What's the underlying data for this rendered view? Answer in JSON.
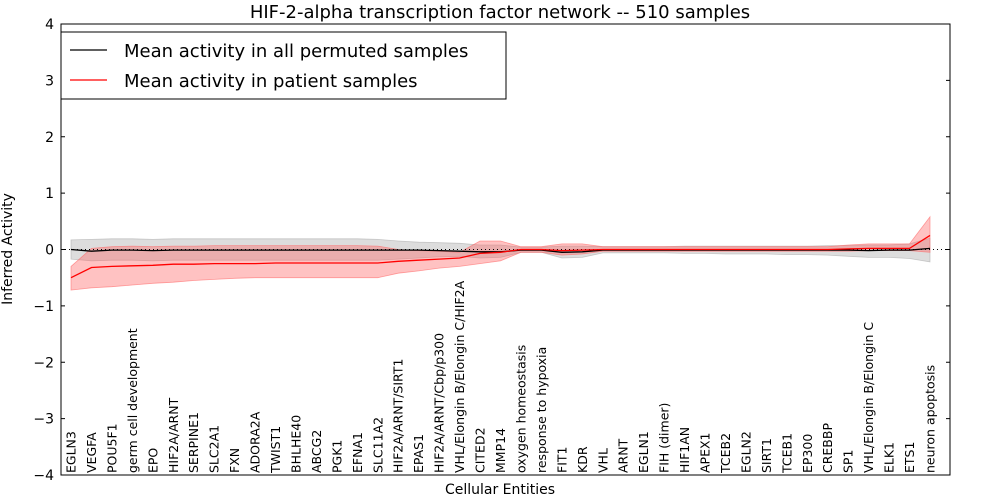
{
  "chart_data": {
    "type": "line",
    "title": "HIF-2-alpha transcription factor network -- 510 samples",
    "xlabel": "Cellular Entities",
    "ylabel": "Inferred Activity",
    "ylim": [
      -4,
      4
    ],
    "yticks": [
      -4,
      -3,
      -2,
      -1,
      0,
      1,
      2,
      3,
      4
    ],
    "ytick_labels": [
      "−4",
      "−3",
      "−2",
      "−1",
      "0",
      "1",
      "2",
      "3",
      "4"
    ],
    "legend_position": "top-left",
    "categories": [
      "EGLN3",
      "VEGFA",
      "POU5F1",
      "germ cell development",
      "EPO",
      "HIF2A/ARNT",
      "SERPINE1",
      "SLC2A1",
      "FXN",
      "ADORA2A",
      "TWIST1",
      "BHLHE40",
      "ABCG2",
      "PGK1",
      "EFNA1",
      "SLC11A2",
      "HIF2A/ARNT/SIRT1",
      "EPAS1",
      "HIF2A/ARNT/Cbp/p300",
      "VHL/Elongin B/Elongin C/HIF2A",
      "CITED2",
      "MMP14",
      "oxygen homeostasis",
      "response to hypoxia",
      "FIT1",
      "KDR",
      "VHL",
      "ARNT",
      "EGLN1",
      "FIH (dimer)",
      "HIF1AN",
      "APEX1",
      "TCEB2",
      "EGLN2",
      "SIRT1",
      "TCEB1",
      "EP300",
      "CREBBP",
      "SP1",
      "VHL/Elongin B/Elongin C",
      "ELK1",
      "ETS1",
      "neuron apoptosis"
    ],
    "series": [
      {
        "name": "Mean activity in all permuted samples",
        "color": "#000000",
        "band_color": "#aaaaaa",
        "values": [
          0.0,
          -0.03,
          -0.01,
          -0.01,
          -0.02,
          -0.01,
          -0.01,
          -0.01,
          -0.01,
          -0.01,
          -0.01,
          -0.01,
          -0.01,
          -0.01,
          -0.01,
          -0.01,
          -0.01,
          -0.01,
          -0.02,
          -0.03,
          -0.04,
          -0.04,
          -0.01,
          -0.01,
          -0.05,
          -0.04,
          -0.01,
          -0.01,
          -0.01,
          -0.01,
          -0.01,
          -0.01,
          -0.01,
          -0.01,
          -0.01,
          -0.01,
          -0.01,
          -0.01,
          -0.01,
          -0.02,
          -0.01,
          -0.01,
          0.02
        ],
        "lower": [
          -0.17,
          -0.2,
          -0.19,
          -0.19,
          -0.2,
          -0.19,
          -0.19,
          -0.19,
          -0.19,
          -0.19,
          -0.19,
          -0.19,
          -0.19,
          -0.19,
          -0.19,
          -0.19,
          -0.17,
          -0.15,
          -0.13,
          -0.12,
          -0.15,
          -0.14,
          -0.05,
          -0.05,
          -0.15,
          -0.14,
          -0.06,
          -0.06,
          -0.06,
          -0.06,
          -0.07,
          -0.07,
          -0.08,
          -0.08,
          -0.08,
          -0.09,
          -0.09,
          -0.1,
          -0.12,
          -0.14,
          -0.14,
          -0.16,
          -0.22
        ],
        "upper": [
          0.17,
          0.18,
          0.19,
          0.19,
          0.18,
          0.19,
          0.19,
          0.19,
          0.19,
          0.19,
          0.19,
          0.19,
          0.19,
          0.19,
          0.19,
          0.18,
          0.15,
          0.13,
          0.12,
          0.11,
          0.08,
          0.08,
          0.04,
          0.04,
          0.06,
          0.06,
          0.05,
          0.05,
          0.05,
          0.05,
          0.06,
          0.06,
          0.06,
          0.06,
          0.06,
          0.06,
          0.06,
          0.07,
          0.07,
          0.08,
          0.08,
          0.1,
          0.2
        ]
      },
      {
        "name": "Mean activity in patient samples",
        "color": "#ff0000",
        "band_color": "#ff6666",
        "values": [
          -0.5,
          -0.32,
          -0.3,
          -0.29,
          -0.28,
          -0.26,
          -0.26,
          -0.25,
          -0.25,
          -0.25,
          -0.24,
          -0.24,
          -0.24,
          -0.24,
          -0.24,
          -0.24,
          -0.21,
          -0.19,
          -0.17,
          -0.15,
          -0.07,
          -0.05,
          0.0,
          0.0,
          -0.02,
          -0.01,
          0.0,
          0.0,
          0.0,
          0.0,
          0.0,
          0.0,
          0.0,
          0.0,
          0.0,
          0.0,
          0.0,
          0.0,
          0.01,
          0.02,
          0.02,
          0.02,
          0.25
        ],
        "lower": [
          -0.72,
          -0.68,
          -0.66,
          -0.63,
          -0.6,
          -0.58,
          -0.55,
          -0.53,
          -0.51,
          -0.5,
          -0.5,
          -0.5,
          -0.5,
          -0.5,
          -0.5,
          -0.5,
          -0.42,
          -0.38,
          -0.33,
          -0.3,
          -0.25,
          -0.2,
          -0.05,
          -0.05,
          -0.1,
          -0.08,
          -0.03,
          -0.03,
          -0.03,
          -0.03,
          -0.03,
          -0.03,
          -0.03,
          -0.03,
          -0.03,
          -0.03,
          -0.03,
          -0.03,
          -0.03,
          -0.02,
          -0.02,
          -0.02,
          -0.05
        ],
        "upper": [
          -0.3,
          0.02,
          0.05,
          0.06,
          0.05,
          0.06,
          0.06,
          0.07,
          0.07,
          0.07,
          0.07,
          0.07,
          0.07,
          0.07,
          0.07,
          0.06,
          0.0,
          -0.02,
          -0.03,
          -0.05,
          0.15,
          0.15,
          0.05,
          0.05,
          0.1,
          0.1,
          0.05,
          0.05,
          0.05,
          0.05,
          0.05,
          0.05,
          0.05,
          0.05,
          0.05,
          0.05,
          0.05,
          0.05,
          0.08,
          0.1,
          0.1,
          0.1,
          0.58
        ]
      }
    ]
  }
}
